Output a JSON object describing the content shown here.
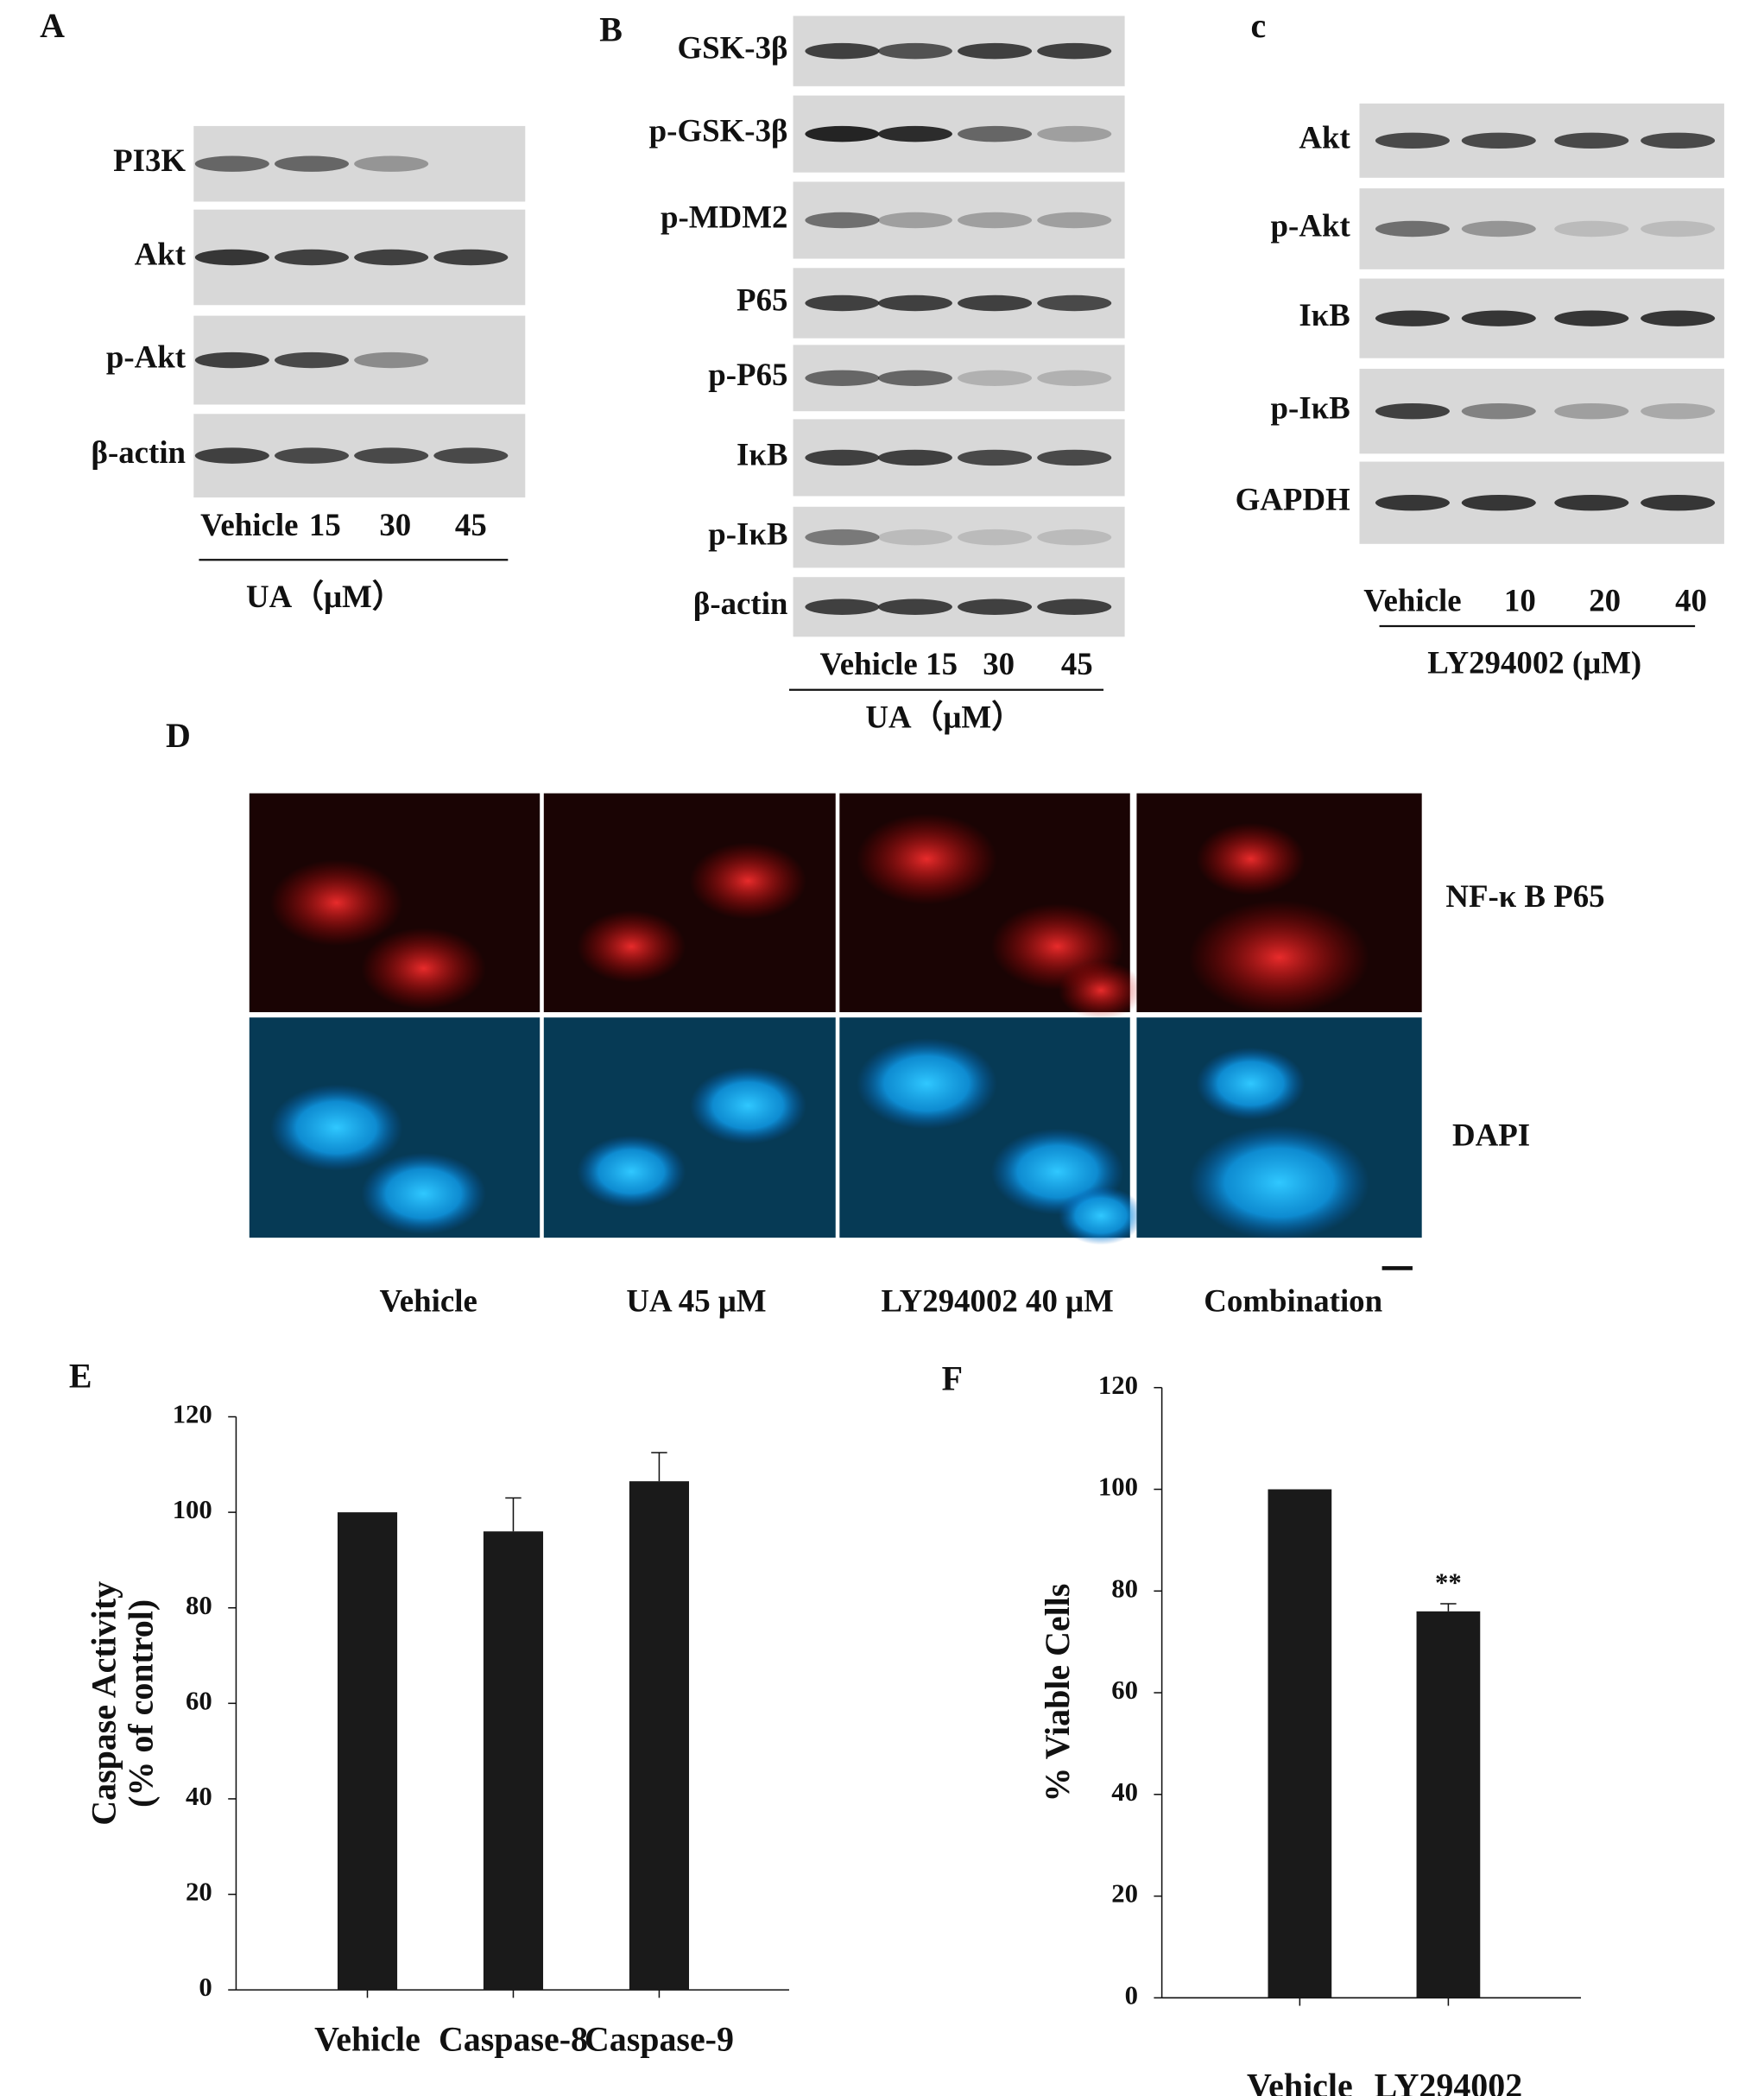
{
  "panels": {
    "A": {
      "label": "A",
      "rows": [
        "PI3K",
        "Akt",
        "p-Akt",
        "β-actin"
      ],
      "lanes": [
        "Vehicle",
        "15",
        "30",
        "45"
      ],
      "treatment": "UA（μM）"
    },
    "B": {
      "label": "B",
      "rows": [
        "GSK-3β",
        "p-GSK-3β",
        "p-MDM2",
        "P65",
        "p-P65",
        "IκB",
        "p-IκB",
        "β-actin"
      ],
      "lanes": [
        "Vehicle",
        "15",
        "30",
        "45"
      ],
      "treatment": "UA（μM）"
    },
    "C": {
      "label": "c",
      "rows": [
        "Akt",
        "p-Akt",
        "IκB",
        "p-IκB",
        "GAPDH"
      ],
      "lanes": [
        "Vehicle",
        "10",
        "20",
        "40"
      ],
      "treatment": "LY294002 (μM)"
    },
    "D": {
      "label": "D",
      "rows": [
        "NF-κ B P65",
        "DAPI"
      ],
      "conditions": [
        "Vehicle",
        "UA 45 μM",
        "LY294002 40 μM",
        "Combination"
      ]
    }
  },
  "chart_data": [
    {
      "type": "bar",
      "panel_label": "E",
      "y_label": [
        "Caspase Activity",
        "(% of control)"
      ],
      "categories": [
        "Vehicle",
        "Caspase-8",
        "Caspase-9"
      ],
      "values": [
        100,
        96,
        106.5
      ],
      "errors": [
        0,
        7,
        6
      ],
      "color": "#1a1a1a",
      "ylim": [
        0,
        120
      ],
      "yticks": [
        0,
        20,
        40,
        60,
        80,
        100,
        120
      ]
    },
    {
      "type": "bar",
      "panel_label": "F",
      "y_label": [
        "% Viable Cells"
      ],
      "categories": [
        "Vehicle",
        "LY294002"
      ],
      "values": [
        100,
        76
      ],
      "errors": [
        0,
        1.5
      ],
      "significance": [
        null,
        "**"
      ],
      "color": "#1a1a1a",
      "ylim": [
        0,
        120
      ],
      "yticks": [
        0,
        20,
        40,
        60,
        80,
        100,
        120
      ]
    }
  ]
}
